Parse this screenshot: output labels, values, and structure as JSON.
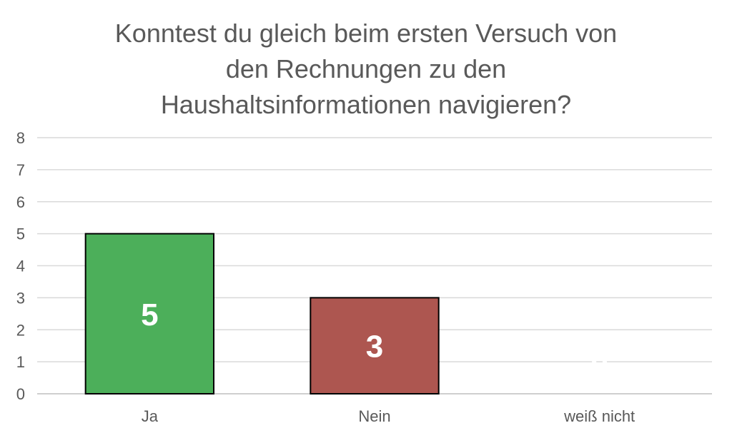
{
  "chart_data": {
    "type": "bar",
    "title_lines": [
      "Konntest du gleich beim ersten Versuch von",
      "den Rechnungen zu den",
      "Haushaltsinformationen navigieren?"
    ],
    "categories": [
      "Ja",
      "Nein",
      "weiß nicht"
    ],
    "values": [
      5,
      3,
      0
    ],
    "data_labels": [
      "5",
      "3",
      "0"
    ],
    "bar_colors": [
      "#4caf5a",
      "#ad5650",
      "#ffffff"
    ],
    "ylim": [
      0,
      8
    ],
    "yticks": [
      "0",
      "1",
      "2",
      "3",
      "4",
      "5",
      "6",
      "7",
      "8"
    ],
    "grid": true,
    "legend": "none"
  }
}
